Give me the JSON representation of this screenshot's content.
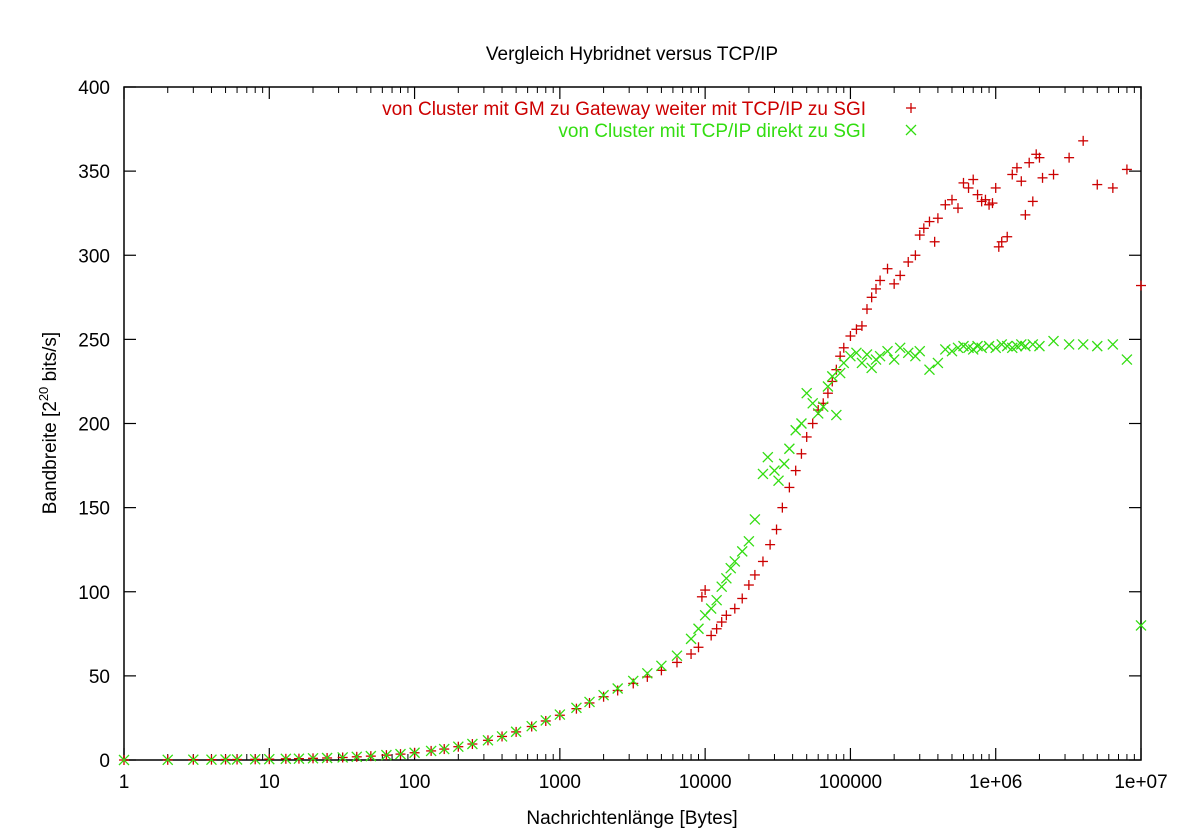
{
  "chart_data": {
    "type": "scatter",
    "title": "Vergleich Hybridnet versus TCP/IP",
    "xlabel": "Nachrichtenlänge [Bytes]",
    "ylabel_prefix": "Bandbreite [2",
    "ylabel_sup": "20",
    "ylabel_suffix": " bits/s]",
    "xscale": "log",
    "xlim": [
      1,
      10000000
    ],
    "ylim": [
      0,
      400
    ],
    "grid": false,
    "legend_position": "top-right",
    "x_ticks": [
      {
        "value": 1,
        "label": "1"
      },
      {
        "value": 10,
        "label": "10"
      },
      {
        "value": 100,
        "label": "100"
      },
      {
        "value": 1000,
        "label": "1000"
      },
      {
        "value": 10000,
        "label": "10000"
      },
      {
        "value": 100000,
        "label": "100000"
      },
      {
        "value": 1000000,
        "label": "1e+06"
      },
      {
        "value": 10000000,
        "label": "1e+07"
      }
    ],
    "y_ticks": [
      {
        "value": 0,
        "label": "0"
      },
      {
        "value": 50,
        "label": "50"
      },
      {
        "value": 100,
        "label": "100"
      },
      {
        "value": 150,
        "label": "150"
      },
      {
        "value": 200,
        "label": "200"
      },
      {
        "value": 250,
        "label": "250"
      },
      {
        "value": 300,
        "label": "300"
      },
      {
        "value": 350,
        "label": "350"
      },
      {
        "value": 400,
        "label": "400"
      }
    ],
    "series": [
      {
        "name": "von Cluster mit GM zu Gateway weiter mit TCP/IP zu SGI",
        "marker": "plus",
        "color": "#cc0000",
        "points": [
          [
            1,
            0
          ],
          [
            2,
            0.1
          ],
          [
            3,
            0.2
          ],
          [
            4,
            0.2
          ],
          [
            5,
            0.3
          ],
          [
            6,
            0.3
          ],
          [
            8,
            0.4
          ],
          [
            10,
            0.5
          ],
          [
            13,
            0.7
          ],
          [
            16,
            0.8
          ],
          [
            20,
            1
          ],
          [
            25,
            1.2
          ],
          [
            32,
            1.5
          ],
          [
            40,
            1.9
          ],
          [
            50,
            2.3
          ],
          [
            64,
            2.9
          ],
          [
            80,
            3.5
          ],
          [
            100,
            4.3
          ],
          [
            130,
            5.4
          ],
          [
            160,
            6.5
          ],
          [
            200,
            7.9
          ],
          [
            250,
            9.5
          ],
          [
            320,
            11.7
          ],
          [
            400,
            14
          ],
          [
            500,
            16.7
          ],
          [
            640,
            19.9
          ],
          [
            800,
            23.2
          ],
          [
            1000,
            26.6
          ],
          [
            1300,
            30.5
          ],
          [
            1600,
            33.9
          ],
          [
            2000,
            37.6
          ],
          [
            2500,
            41.3
          ],
          [
            3200,
            45.5
          ],
          [
            4000,
            49.4
          ],
          [
            5000,
            53.3
          ],
          [
            6400,
            58
          ],
          [
            8000,
            63
          ],
          [
            9000,
            67
          ],
          [
            9500,
            97
          ],
          [
            10000,
            101
          ],
          [
            11000,
            74
          ],
          [
            12000,
            78
          ],
          [
            13000,
            82
          ],
          [
            14000,
            86
          ],
          [
            16000,
            90
          ],
          [
            18000,
            96
          ],
          [
            20000,
            104
          ],
          [
            22000,
            110
          ],
          [
            25000,
            118
          ],
          [
            28000,
            128
          ],
          [
            31000,
            137
          ],
          [
            34000,
            150
          ],
          [
            38000,
            162
          ],
          [
            42000,
            172
          ],
          [
            46000,
            182
          ],
          [
            50000,
            192
          ],
          [
            55000,
            200
          ],
          [
            60000,
            208
          ],
          [
            65000,
            212
          ],
          [
            70000,
            218
          ],
          [
            75000,
            225
          ],
          [
            80000,
            232
          ],
          [
            85000,
            240
          ],
          [
            90000,
            245
          ],
          [
            100000,
            252
          ],
          [
            110000,
            256
          ],
          [
            120000,
            258
          ],
          [
            130000,
            268
          ],
          [
            140000,
            275
          ],
          [
            150000,
            280
          ],
          [
            160000,
            285
          ],
          [
            180000,
            292
          ],
          [
            200000,
            283
          ],
          [
            220000,
            288
          ],
          [
            250000,
            296
          ],
          [
            280000,
            300
          ],
          [
            300000,
            312
          ],
          [
            320000,
            316
          ],
          [
            350000,
            320
          ],
          [
            380000,
            308
          ],
          [
            400000,
            322
          ],
          [
            450000,
            330
          ],
          [
            500000,
            333
          ],
          [
            550000,
            328
          ],
          [
            600000,
            343
          ],
          [
            650000,
            340
          ],
          [
            700000,
            345
          ],
          [
            750000,
            336
          ],
          [
            800000,
            332
          ],
          [
            850000,
            333
          ],
          [
            900000,
            330
          ],
          [
            950000,
            331
          ],
          [
            1000000,
            340
          ],
          [
            1050000,
            305
          ],
          [
            1100000,
            308
          ],
          [
            1200000,
            311
          ],
          [
            1300000,
            348
          ],
          [
            1400000,
            352
          ],
          [
            1500000,
            344
          ],
          [
            1600000,
            324
          ],
          [
            1700000,
            355
          ],
          [
            1800000,
            332
          ],
          [
            1900000,
            360
          ],
          [
            2000000,
            358
          ],
          [
            2100000,
            346
          ],
          [
            2500000,
            348
          ],
          [
            3200000,
            358
          ],
          [
            4000000,
            368
          ],
          [
            5000000,
            342
          ],
          [
            6400000,
            340
          ],
          [
            8000000,
            351
          ],
          [
            10000000,
            282
          ]
        ]
      },
      {
        "name": "von Cluster mit TCP/IP direkt zu SGI",
        "marker": "cross",
        "color": "#33dd11",
        "points": [
          [
            1,
            0
          ],
          [
            2,
            0.1
          ],
          [
            3,
            0.2
          ],
          [
            4,
            0.2
          ],
          [
            5,
            0.3
          ],
          [
            6,
            0.3
          ],
          [
            8,
            0.4
          ],
          [
            10,
            0.5
          ],
          [
            13,
            0.7
          ],
          [
            16,
            0.8
          ],
          [
            20,
            1
          ],
          [
            25,
            1.2
          ],
          [
            32,
            1.5
          ],
          [
            40,
            1.9
          ],
          [
            50,
            2.3
          ],
          [
            64,
            2.9
          ],
          [
            80,
            3.5
          ],
          [
            100,
            4.3
          ],
          [
            130,
            5.4
          ],
          [
            160,
            6.5
          ],
          [
            200,
            7.9
          ],
          [
            250,
            9.5
          ],
          [
            320,
            11.7
          ],
          [
            400,
            14
          ],
          [
            500,
            16.8
          ],
          [
            640,
            20.1
          ],
          [
            800,
            23.5
          ],
          [
            1000,
            27
          ],
          [
            1300,
            31
          ],
          [
            1600,
            34.5
          ],
          [
            2000,
            38.5
          ],
          [
            2500,
            42.5
          ],
          [
            3200,
            47
          ],
          [
            4000,
            51.5
          ],
          [
            5000,
            56
          ],
          [
            6400,
            62
          ],
          [
            8000,
            72
          ],
          [
            9000,
            78
          ],
          [
            10000,
            86
          ],
          [
            11000,
            90
          ],
          [
            12000,
            95
          ],
          [
            13000,
            103
          ],
          [
            14000,
            108
          ],
          [
            15000,
            114
          ],
          [
            16000,
            118
          ],
          [
            18000,
            124
          ],
          [
            20000,
            130
          ],
          [
            22000,
            143
          ],
          [
            25000,
            170
          ],
          [
            27000,
            180
          ],
          [
            30000,
            172
          ],
          [
            32000,
            166
          ],
          [
            35000,
            176
          ],
          [
            38000,
            185
          ],
          [
            42000,
            196
          ],
          [
            46000,
            200
          ],
          [
            50000,
            218
          ],
          [
            55000,
            212
          ],
          [
            60000,
            206
          ],
          [
            65000,
            210
          ],
          [
            70000,
            222
          ],
          [
            75000,
            228
          ],
          [
            80000,
            205
          ],
          [
            85000,
            230
          ],
          [
            90000,
            236
          ],
          [
            100000,
            240
          ],
          [
            110000,
            242
          ],
          [
            120000,
            236
          ],
          [
            130000,
            241
          ],
          [
            140000,
            233
          ],
          [
            150000,
            238
          ],
          [
            160000,
            240
          ],
          [
            180000,
            243
          ],
          [
            200000,
            238
          ],
          [
            220000,
            245
          ],
          [
            250000,
            242
          ],
          [
            280000,
            240
          ],
          [
            300000,
            243
          ],
          [
            350000,
            232
          ],
          [
            400000,
            236
          ],
          [
            450000,
            244
          ],
          [
            500000,
            243
          ],
          [
            550000,
            245
          ],
          [
            600000,
            246
          ],
          [
            650000,
            245
          ],
          [
            700000,
            244
          ],
          [
            750000,
            246
          ],
          [
            800000,
            245
          ],
          [
            900000,
            246
          ],
          [
            1000000,
            245
          ],
          [
            1100000,
            247
          ],
          [
            1200000,
            246
          ],
          [
            1300000,
            245
          ],
          [
            1400000,
            246
          ],
          [
            1500000,
            247
          ],
          [
            1600000,
            246
          ],
          [
            1800000,
            247
          ],
          [
            2000000,
            246
          ],
          [
            2500000,
            249
          ],
          [
            3200000,
            247
          ],
          [
            4000000,
            247
          ],
          [
            5000000,
            246
          ],
          [
            6400000,
            247
          ],
          [
            8000000,
            238
          ],
          [
            10000000,
            80
          ]
        ]
      }
    ]
  }
}
